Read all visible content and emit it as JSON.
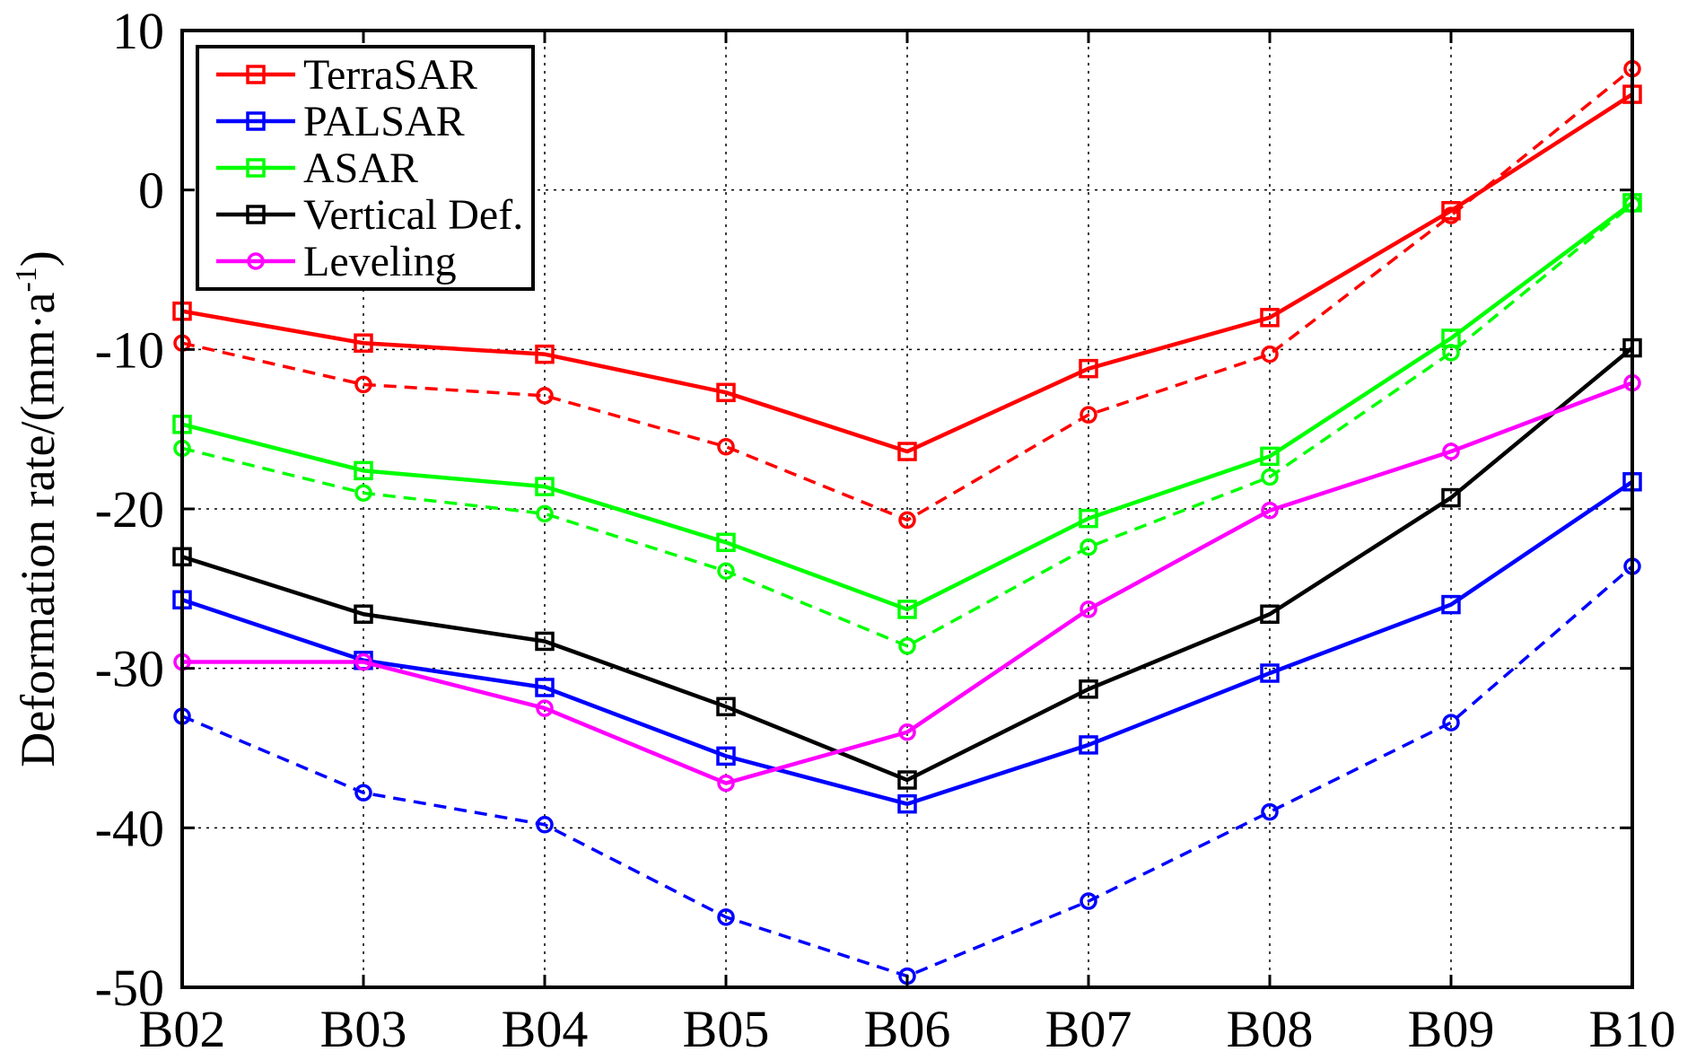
{
  "chart_data": {
    "type": "line",
    "title": "",
    "xlabel": "",
    "ylabel": "Deformation rate/(mm·a",
    "ylabel_superscript": "-1",
    "ylabel_close": ")",
    "categories": [
      "B02",
      "B03",
      "B04",
      "B05",
      "B06",
      "B07",
      "B08",
      "B09",
      "B10"
    ],
    "yticks": [
      "10",
      "0",
      "-10",
      "-20",
      "-30",
      "-40",
      "-50"
    ],
    "ylim": [
      -50,
      10
    ],
    "grid": true,
    "legend_position": "top-left",
    "series": [
      {
        "name": "TerraSAR",
        "color": "#ff0000",
        "marker": "square",
        "dash": false,
        "values": [
          -7.6,
          -9.6,
          -10.3,
          -12.7,
          -16.4,
          -11.2,
          -8.0,
          -1.3,
          6.0
        ]
      },
      {
        "name": "PALSAR",
        "color": "#0000ff",
        "marker": "square",
        "dash": false,
        "values": [
          -25.7,
          -29.5,
          -31.2,
          -35.5,
          -38.5,
          -34.8,
          -30.3,
          -26.0,
          -18.3
        ]
      },
      {
        "name": "ASAR",
        "color": "#00ff00",
        "marker": "square",
        "dash": false,
        "values": [
          -14.7,
          -17.6,
          -18.6,
          -22.1,
          -26.3,
          -20.6,
          -16.7,
          -9.3,
          -0.8
        ]
      },
      {
        "name": "Vertical Def.",
        "color": "#000000",
        "marker": "square",
        "dash": false,
        "values": [
          -23.0,
          -26.6,
          -28.3,
          -32.4,
          -37.0,
          -31.3,
          -26.6,
          -19.3,
          -9.9
        ]
      },
      {
        "name": "Leveling",
        "color": "#ff00ff",
        "marker": "circle",
        "dash": false,
        "values": [
          -29.6,
          -29.6,
          -32.5,
          -37.2,
          -34.0,
          -26.3,
          -20.1,
          -16.4,
          -12.1
        ]
      },
      {
        "color": "#ff0000",
        "marker": "circle",
        "dash": true,
        "values": [
          -9.6,
          -12.2,
          -12.9,
          -16.1,
          -20.7,
          -14.1,
          -10.3,
          -1.6,
          7.6
        ]
      },
      {
        "color": "#0000ff",
        "marker": "circle",
        "dash": true,
        "values": [
          -33.0,
          -37.8,
          -39.8,
          -45.6,
          -49.3,
          -44.6,
          -39.0,
          -33.4,
          -23.6
        ]
      },
      {
        "color": "#00ff00",
        "marker": "circle",
        "dash": true,
        "values": [
          -16.2,
          -19.0,
          -20.3,
          -23.9,
          -28.6,
          -22.4,
          -18.0,
          -10.2,
          -0.9
        ]
      }
    ]
  }
}
